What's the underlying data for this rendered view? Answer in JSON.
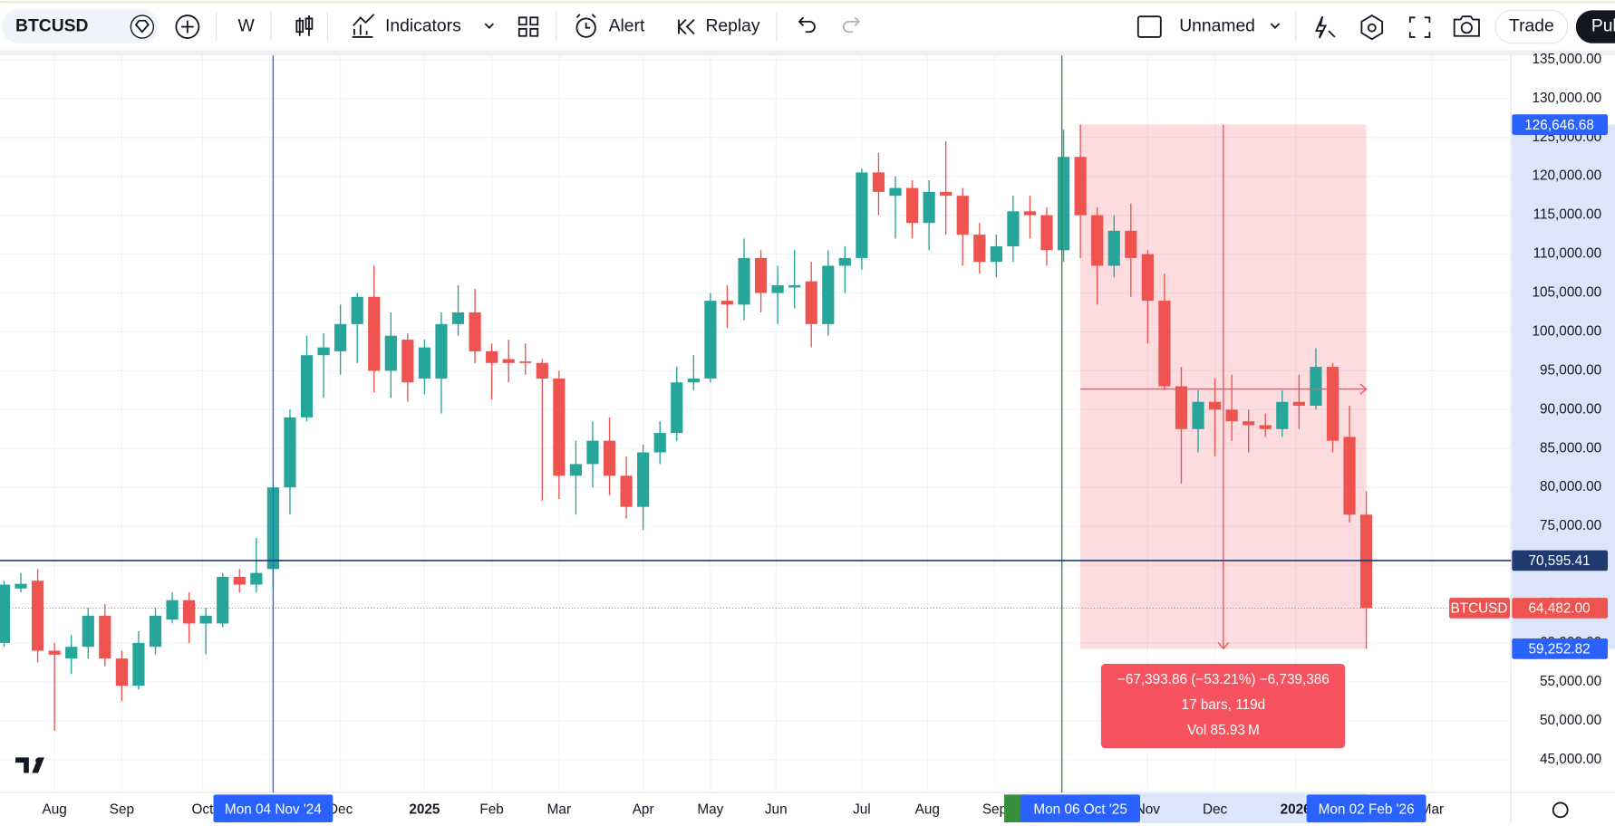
{
  "toolbar": {
    "symbol": "BTCUSD",
    "interval": "W",
    "indicators": "Indicators",
    "alert": "Alert",
    "replay": "Replay",
    "layout": "Unnamed",
    "trade": "Trade",
    "publish": "Pul"
  },
  "chart_data": {
    "type": "candlestick",
    "series": [
      {
        "name": "BTCUSD",
        "up_color": "#26a69a",
        "down_color": "#ef5350",
        "open": [
          60000,
          67000,
          68000,
          59000,
          58000,
          59500,
          63500,
          58000,
          54500,
          59500,
          63000,
          65500,
          62500,
          62500,
          68500,
          67500,
          69500,
          80000,
          89000,
          97000,
          97500,
          101000,
          104500,
          95000,
          99000,
          94000,
          94000,
          101000,
          102500,
          97500,
          96500,
          96200,
          96000,
          94000,
          81500,
          83000,
          86000,
          81500,
          77500,
          84500,
          87000,
          93500,
          94000,
          104000,
          103500,
          109500,
          105000,
          105700,
          106500,
          101000,
          108500,
          109500,
          120500,
          117500,
          118500,
          114000,
          118000,
          117500,
          112500,
          109000,
          111000,
          115500,
          115000,
          110500,
          122500,
          115000,
          108500,
          113000,
          110000,
          104000,
          93000,
          87500,
          91000,
          90000,
          88500,
          88000,
          87500,
          91000,
          90500,
          95500,
          86500,
          76500
        ],
        "high": [
          68000,
          69000,
          69500,
          60000,
          61000,
          64500,
          65000,
          59000,
          61500,
          64500,
          66500,
          66500,
          64500,
          69000,
          69500,
          73500,
          80500,
          90000,
          99500,
          99800,
          103500,
          105000,
          108500,
          102500,
          99800,
          99000,
          102500,
          106000,
          105500,
          98500,
          99000,
          98500,
          96500,
          95000,
          86000,
          88500,
          89000,
          84000,
          85500,
          88500,
          95500,
          97000,
          105000,
          106000,
          112000,
          110500,
          108500,
          110500,
          109000,
          110500,
          111000,
          121000,
          123000,
          120000,
          119500,
          119500,
          124500,
          118500,
          114000,
          112500,
          117500,
          117500,
          116000,
          126000,
          126646.68,
          116000,
          115000,
          116500,
          110500,
          107500,
          95500,
          92500,
          94000,
          94500,
          90000,
          89500,
          92500,
          94500,
          97900,
          96000,
          90500,
          79500
        ],
        "low": [
          59500,
          66500,
          57500,
          48700,
          56000,
          58000,
          57000,
          52500,
          54000,
          58500,
          62500,
          60000,
          58500,
          62000,
          66500,
          66500,
          66800,
          76500,
          88500,
          91500,
          94500,
          96000,
          92200,
          91500,
          91000,
          92000,
          89500,
          99500,
          96000,
          91300,
          93500,
          94500,
          78300,
          78500,
          76500,
          80000,
          79000,
          76000,
          74500,
          83000,
          86000,
          92500,
          93500,
          100500,
          101500,
          102500,
          101000,
          103000,
          98000,
          99500,
          105000,
          108000,
          115000,
          112000,
          112000,
          110500,
          112500,
          108500,
          107500,
          107000,
          109000,
          112000,
          108500,
          109000,
          109500,
          103500,
          107000,
          104500,
          98500,
          92500,
          80500,
          84500,
          84000,
          86000,
          84500,
          86500,
          86500,
          87500,
          90000,
          84500,
          75500,
          59252.82
        ],
        "close": [
          67500,
          67600,
          59000,
          58500,
          59500,
          63500,
          58000,
          54500,
          60000,
          63500,
          65500,
          62500,
          63500,
          68500,
          67500,
          69000,
          80000,
          89000,
          97000,
          98000,
          101000,
          104500,
          95000,
          99500,
          93500,
          98000,
          101000,
          102500,
          97500,
          96000,
          96000,
          96000,
          94000,
          81500,
          83000,
          86000,
          81500,
          77500,
          84500,
          87000,
          93500,
          94000,
          104000,
          103500,
          109500,
          105000,
          106000,
          106000,
          101000,
          108500,
          109500,
          120500,
          118000,
          118500,
          114000,
          118000,
          117500,
          112500,
          109000,
          111000,
          115500,
          115000,
          110500,
          122500,
          115000,
          108500,
          113000,
          109500,
          104000,
          93000,
          87500,
          91000,
          90000,
          88500,
          88000,
          87500,
          91000,
          90500,
          95500,
          86000,
          76500,
          64482
        ]
      }
    ],
    "xlim": [
      -0.24,
      89.6
    ],
    "ylim": [
      40770,
      135790
    ],
    "xticks": [
      {
        "value": 3,
        "label": "Aug"
      },
      {
        "value": 7,
        "label": "Sep"
      },
      {
        "value": 11.8,
        "label": "Oct"
      },
      {
        "value": 20,
        "label": "Dec"
      },
      {
        "value": 25,
        "label": "2025"
      },
      {
        "value": 29,
        "label": "Feb"
      },
      {
        "value": 33,
        "label": "Mar"
      },
      {
        "value": 38,
        "label": "Apr"
      },
      {
        "value": 42,
        "label": "May"
      },
      {
        "value": 45.9,
        "label": "Jun"
      },
      {
        "value": 51,
        "label": "Jul"
      },
      {
        "value": 54.9,
        "label": "Aug"
      },
      {
        "value": 58.9,
        "label": "Sep"
      },
      {
        "value": 68,
        "label": "Nov"
      },
      {
        "value": 72,
        "label": "Dec"
      },
      {
        "value": 76.8,
        "label": "2026"
      },
      {
        "value": 84.9,
        "label": "Mar"
      }
    ],
    "yticks": [
      {
        "value": 135000,
        "label": "135,000.00"
      },
      {
        "value": 130000,
        "label": "130,000.00"
      },
      {
        "value": 125000,
        "label": "125,000.00"
      },
      {
        "value": 120000,
        "label": "120,000.00"
      },
      {
        "value": 115000,
        "label": "115,000.00"
      },
      {
        "value": 110000,
        "label": "110,000.00"
      },
      {
        "value": 105000,
        "label": "105,000.00"
      },
      {
        "value": 100000,
        "label": "100,000.00"
      },
      {
        "value": 95000,
        "label": "95,000.00"
      },
      {
        "value": 90000,
        "label": "90,000.00"
      },
      {
        "value": 85000,
        "label": "85,000.00"
      },
      {
        "value": 80000,
        "label": "80,000.00"
      },
      {
        "value": 75000,
        "label": "75,000.00"
      },
      {
        "value": 70000,
        "label": "70,000.00"
      },
      {
        "value": 65000,
        "label": "65,000.00"
      },
      {
        "value": 60000,
        "label": "60,000.00"
      },
      {
        "value": 55000,
        "label": "55,000.00"
      },
      {
        "value": 50000,
        "label": "50,000.00"
      },
      {
        "value": 45000,
        "label": "45,000.00"
      }
    ],
    "grid": true,
    "price_labels": {
      "high": {
        "value": 126646.68,
        "label": "126,646.68"
      },
      "crosshair": {
        "value": 70595.41,
        "label": "70,595.41"
      },
      "last": {
        "value": 64482,
        "label": "64,482.00"
      },
      "low": {
        "value": 59252.82,
        "label": "59,252.82"
      }
    },
    "date_labels": [
      "Mon 04 Nov '24",
      "Mon 06 Oct '25",
      "Mon 02 Feb '26"
    ],
    "measure": {
      "change": "−67,393.86 (−53.21%) −6,739,386",
      "bars": "17 bars, 119d",
      "volume": "Vol 85.93 M"
    }
  }
}
